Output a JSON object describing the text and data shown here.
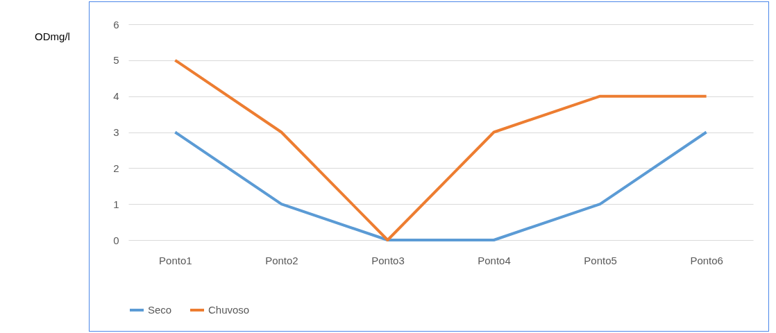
{
  "chart_data": {
    "type": "line",
    "ylabel": "ODmg/l",
    "categories": [
      "Ponto1",
      "Ponto2",
      "Ponto3",
      "Ponto4",
      "Ponto5",
      "Ponto6"
    ],
    "series": [
      {
        "name": "Seco",
        "color": "#5b9bd5",
        "values": [
          3,
          1,
          0,
          0,
          1,
          3
        ]
      },
      {
        "name": "Chuvoso",
        "color": "#ed7d31",
        "values": [
          5,
          3,
          0,
          3,
          4,
          4
        ]
      }
    ],
    "ylim": [
      0,
      6
    ],
    "yticks": [
      0,
      1,
      2,
      3,
      4,
      5,
      6
    ],
    "grid": "y",
    "legend": "bottom"
  }
}
